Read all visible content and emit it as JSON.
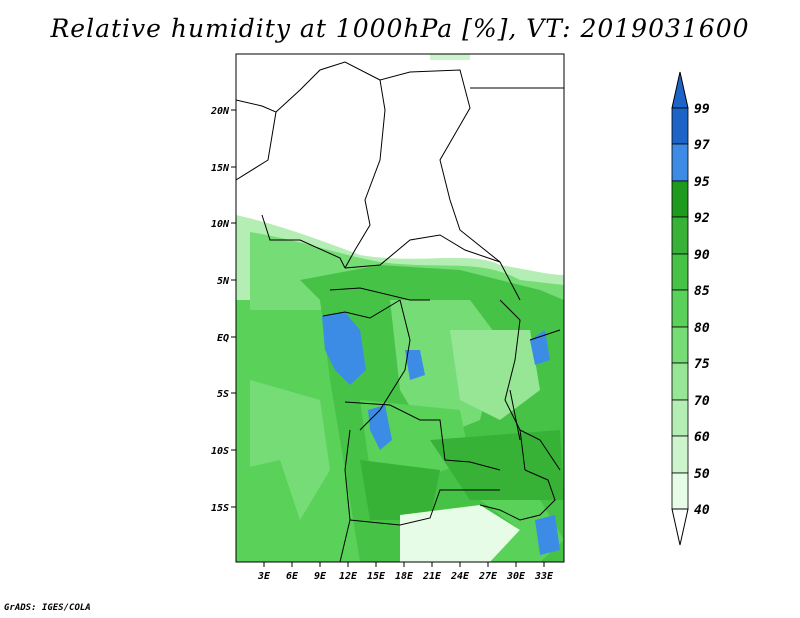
{
  "title": "Relative humidity at 1000hPa [%], VT: 2019031600",
  "credit": "GrADS: IGES/COLA",
  "map": {
    "lat_labels": [
      "20N",
      "15N",
      "10N",
      "5N",
      "EQ",
      "5S",
      "10S",
      "15S"
    ],
    "lon_labels": [
      "3E",
      "6E",
      "9E",
      "12E",
      "15E",
      "18E",
      "21E",
      "24E",
      "27E",
      "30E",
      "33E"
    ]
  },
  "colorbar": {
    "levels": [
      "99",
      "97",
      "95",
      "92",
      "90",
      "85",
      "80",
      "75",
      "70",
      "60",
      "50",
      "40"
    ],
    "colors": [
      "#1c64c8",
      "#3c8ce6",
      "#1e9b1e",
      "#37b237",
      "#46c346",
      "#5ad25a",
      "#76dc76",
      "#96e696",
      "#b4eeb4",
      "#cdf5cd",
      "#e6fce6",
      "#ffffff"
    ],
    "top_arrow_color": "#1c64c8"
  }
}
